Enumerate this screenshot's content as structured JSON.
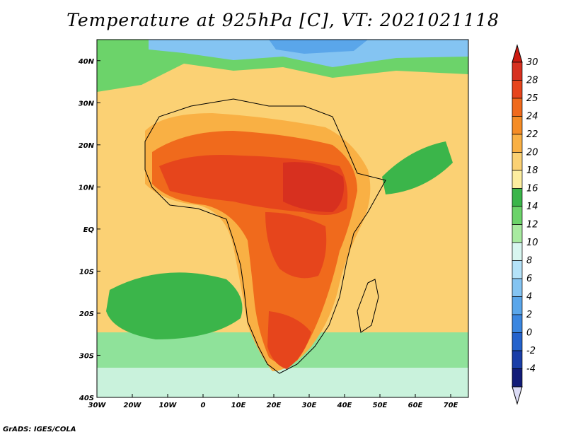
{
  "title": "Temperature at 925hPa [C], VT: 2021021118",
  "credit": "GrADS: IGES/COLA",
  "map": {
    "lon_range": [
      -30,
      75
    ],
    "lat_range": [
      -40,
      45
    ],
    "x_ticks": [
      {
        "lon": -30,
        "label": "30W"
      },
      {
        "lon": -20,
        "label": "20W"
      },
      {
        "lon": -10,
        "label": "10W"
      },
      {
        "lon": 0,
        "label": "0"
      },
      {
        "lon": 10,
        "label": "10E"
      },
      {
        "lon": 20,
        "label": "20E"
      },
      {
        "lon": 30,
        "label": "30E"
      },
      {
        "lon": 40,
        "label": "40E"
      },
      {
        "lon": 50,
        "label": "50E"
      },
      {
        "lon": 60,
        "label": "60E"
      },
      {
        "lon": 70,
        "label": "70E"
      }
    ],
    "y_ticks": [
      {
        "lat": 40,
        "label": "40N"
      },
      {
        "lat": 30,
        "label": "30N"
      },
      {
        "lat": 20,
        "label": "20N"
      },
      {
        "lat": 10,
        "label": "10N"
      },
      {
        "lat": 0,
        "label": "EQ"
      },
      {
        "lat": -10,
        "label": "10S"
      },
      {
        "lat": -20,
        "label": "20S"
      },
      {
        "lat": -30,
        "label": "30S"
      },
      {
        "lat": -40,
        "label": "40S"
      }
    ]
  },
  "colorbar": {
    "levels": [
      {
        "label": "30",
        "color": "#d7301f"
      },
      {
        "label": "28",
        "color": "#e6451c"
      },
      {
        "label": "25",
        "color": "#f06a1c"
      },
      {
        "label": "24",
        "color": "#f58c25"
      },
      {
        "label": "22",
        "color": "#f9b044"
      },
      {
        "label": "20",
        "color": "#fbd174"
      },
      {
        "label": "18",
        "color": "#fdeea0"
      },
      {
        "label": "16",
        "color": "#3bb54a"
      },
      {
        "label": "14",
        "color": "#6cd36a"
      },
      {
        "label": "12",
        "color": "#a8eaa0"
      },
      {
        "label": "10",
        "color": "#d8f6f0"
      },
      {
        "label": "8",
        "color": "#b4e2f8"
      },
      {
        "label": "6",
        "color": "#84c4f2"
      },
      {
        "label": "4",
        "color": "#5aa6ea"
      },
      {
        "label": "2",
        "color": "#3a86e0"
      },
      {
        "label": "0",
        "color": "#2462cc"
      },
      {
        "label": "-2",
        "color": "#1a3ea8"
      },
      {
        "label": "-4",
        "color": "#121c78"
      }
    ],
    "top_arrow_color": "#cc1a10",
    "bottom_arrow_color": "#dcdcf6"
  }
}
